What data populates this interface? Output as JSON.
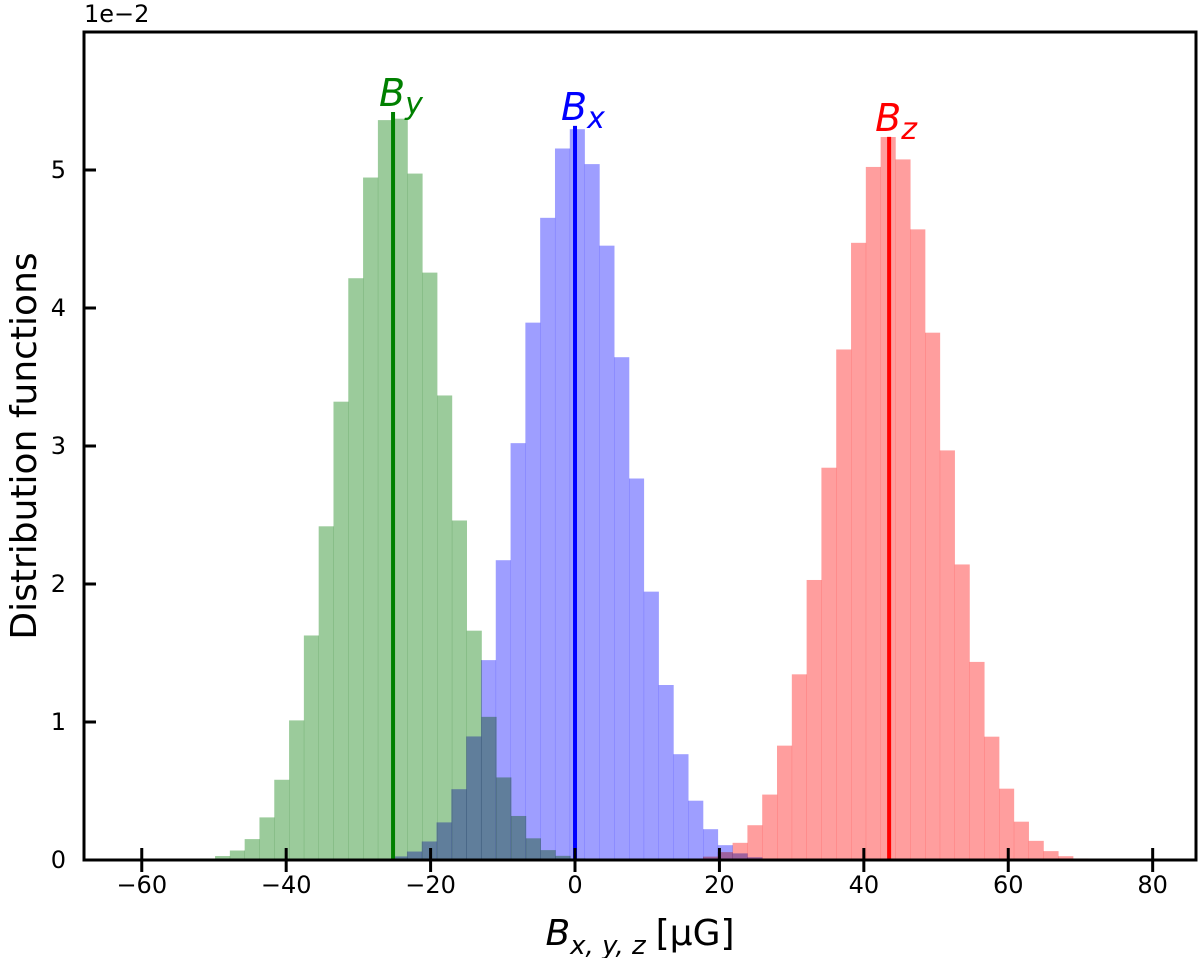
{
  "chart_data": {
    "type": "histogram",
    "ylabel": "Distribution functions",
    "xlabel_main": "B",
    "xlabel_sub": "x, y, z",
    "xlabel_unit": "[μG]",
    "offset_label": "1e−2",
    "xlim": [
      -68,
      86
    ],
    "ylim": [
      0,
      6.0
    ],
    "xticks": [
      -60,
      -40,
      -20,
      0,
      20,
      40,
      60,
      80
    ],
    "xtick_labels": [
      "−60",
      "−40",
      "−20",
      "0",
      "20",
      "40",
      "60",
      "80"
    ],
    "yticks": [
      0,
      1,
      2,
      3,
      4,
      5
    ],
    "ytick_labels": [
      "0",
      "1",
      "2",
      "3",
      "4",
      "5"
    ],
    "bin_width": 2.05,
    "series": [
      {
        "label_main": "B",
        "label_sub": "y",
        "color": "#008000",
        "fill": "#96c896",
        "mean": -25.2,
        "sigma": 7.3,
        "peak": 5.42,
        "marker_height": 5.42
      },
      {
        "label_main": "B",
        "label_sub": "x",
        "color": "#0000ff",
        "fill": "#9999ff",
        "mean": 0.0,
        "sigma": 7.45,
        "peak": 5.3,
        "marker_height": 5.32
      },
      {
        "label_main": "B",
        "label_sub": "z",
        "color": "#ff0000",
        "fill": "#ff9999",
        "mean": 43.5,
        "sigma": 7.55,
        "peak": 5.24,
        "marker_height": 5.24
      }
    ]
  }
}
